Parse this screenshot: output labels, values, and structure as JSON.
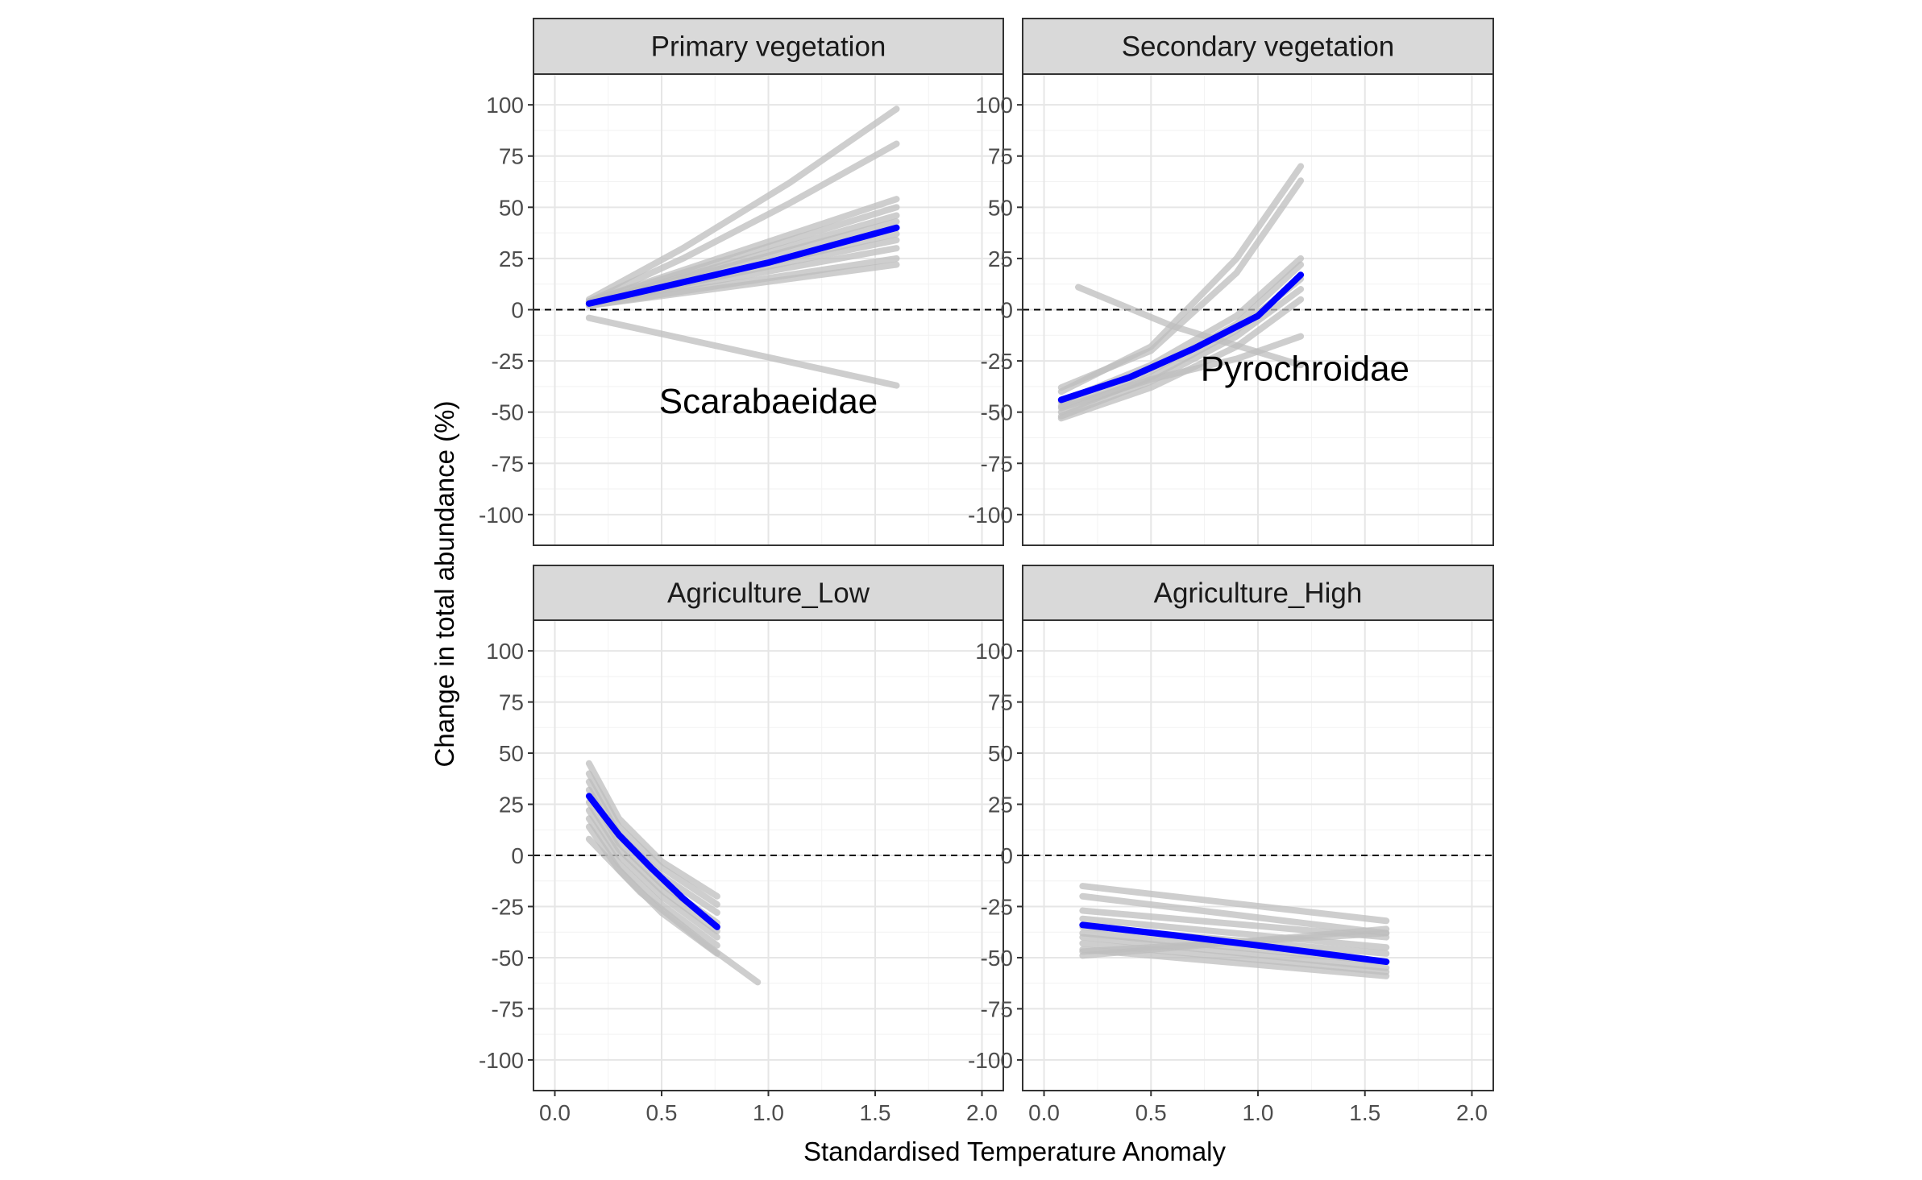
{
  "chart_data": {
    "type": "line",
    "facet_layout": "2x2",
    "xlabel": "Standardised Temperature Anomaly",
    "ylabel": "Change in total abundance (%)",
    "xlim": [
      -0.1,
      2.1
    ],
    "ylim": [
      -115,
      115
    ],
    "x_ticks": [
      0.0,
      0.5,
      1.0,
      1.5,
      2.0
    ],
    "x_tick_labels": [
      "0.0",
      "0.5",
      "1.0",
      "1.5",
      "2.0"
    ],
    "y_ticks": [
      100,
      75,
      50,
      25,
      0,
      -25,
      -50,
      -75,
      -100
    ],
    "y_tick_labels": [
      "100",
      "75",
      "50",
      "25",
      "0",
      "-25",
      "-50",
      "-75",
      "-100"
    ],
    "reference_line": {
      "y": 0,
      "style": "dashed"
    },
    "grid": true,
    "colors": {
      "mean_line": "#0000ff",
      "iteration_lines": "#bdbdbd",
      "strip_fill": "#d9d9d9",
      "reference_line": "#000000"
    },
    "panels": [
      {
        "title": "Primary vegetation",
        "annotation": "Scarabaeidae",
        "mean_series": {
          "x": [
            0.16,
            0.5,
            1.0,
            1.6
          ],
          "y": [
            3,
            11,
            23,
            40
          ]
        },
        "iteration_series": [
          {
            "x": [
              0.16,
              0.6,
              1.1,
              1.6
            ],
            "y": [
              5,
              30,
              62,
              98
            ]
          },
          {
            "x": [
              0.16,
              0.6,
              1.1,
              1.6
            ],
            "y": [
              4,
              25,
              52,
              81
            ]
          },
          {
            "x": [
              0.16,
              1.6
            ],
            "y": [
              4,
              54
            ]
          },
          {
            "x": [
              0.16,
              1.6
            ],
            "y": [
              4,
              50
            ]
          },
          {
            "x": [
              0.16,
              1.6
            ],
            "y": [
              3,
              46
            ]
          },
          {
            "x": [
              0.16,
              1.6
            ],
            "y": [
              3,
              43
            ]
          },
          {
            "x": [
              0.16,
              1.6
            ],
            "y": [
              3,
              37
            ]
          },
          {
            "x": [
              0.16,
              1.6
            ],
            "y": [
              3,
              34
            ]
          },
          {
            "x": [
              0.16,
              1.6
            ],
            "y": [
              3,
              30
            ]
          },
          {
            "x": [
              0.16,
              1.6
            ],
            "y": [
              2,
              25
            ]
          },
          {
            "x": [
              0.16,
              1.6
            ],
            "y": [
              2,
              22
            ]
          },
          {
            "x": [
              0.16,
              1.6
            ],
            "y": [
              -4,
              -37
            ]
          }
        ]
      },
      {
        "title": "Secondary vegetation",
        "annotation": "Pyrochroidae",
        "mean_series": {
          "x": [
            0.08,
            0.4,
            0.7,
            1.0,
            1.2
          ],
          "y": [
            -44,
            -33,
            -19,
            -3,
            17
          ]
        },
        "iteration_series": [
          {
            "x": [
              0.08,
              0.5,
              0.9,
              1.2
            ],
            "y": [
              -40,
              -18,
              25,
              70
            ]
          },
          {
            "x": [
              0.08,
              0.5,
              0.9,
              1.2
            ],
            "y": [
              -38,
              -20,
              18,
              63
            ]
          },
          {
            "x": [
              0.08,
              0.5,
              0.9,
              1.2
            ],
            "y": [
              -45,
              -27,
              -3,
              25
            ]
          },
          {
            "x": [
              0.08,
              0.5,
              0.9,
              1.2
            ],
            "y": [
              -47,
              -30,
              -7,
              22
            ]
          },
          {
            "x": [
              0.08,
              0.5,
              0.9,
              1.2
            ],
            "y": [
              -50,
              -33,
              -10,
              15
            ]
          },
          {
            "x": [
              0.08,
              0.5,
              0.9,
              1.2
            ],
            "y": [
              -52,
              -35,
              -13,
              10
            ]
          },
          {
            "x": [
              0.08,
              0.5,
              0.9,
              1.2
            ],
            "y": [
              -53,
              -38,
              -18,
              5
            ]
          },
          {
            "x": [
              0.08,
              0.5,
              0.9,
              1.2
            ],
            "y": [
              -48,
              -34,
              -24,
              -13
            ]
          },
          {
            "x": [
              0.16,
              0.6,
              1.2
            ],
            "y": [
              11,
              -8,
              -27
            ]
          }
        ]
      },
      {
        "title": "Agriculture_Low",
        "annotation": "",
        "mean_series": {
          "x": [
            0.16,
            0.3,
            0.45,
            0.6,
            0.76
          ],
          "y": [
            29,
            10,
            -6,
            -21,
            -35
          ]
        },
        "iteration_series": [
          {
            "x": [
              0.16,
              0.3,
              0.5,
              0.76
            ],
            "y": [
              45,
              18,
              -3,
              -20
            ]
          },
          {
            "x": [
              0.16,
              0.3,
              0.5,
              0.76
            ],
            "y": [
              40,
              14,
              -6,
              -24
            ]
          },
          {
            "x": [
              0.16,
              0.3,
              0.5,
              0.76
            ],
            "y": [
              36,
              10,
              -10,
              -28
            ]
          },
          {
            "x": [
              0.16,
              0.3,
              0.5,
              0.76
            ],
            "y": [
              32,
              6,
              -14,
              -33
            ]
          },
          {
            "x": [
              0.16,
              0.3,
              0.5,
              0.76
            ],
            "y": [
              26,
              3,
              -17,
              -37
            ]
          },
          {
            "x": [
              0.16,
              0.3,
              0.5,
              0.76
            ],
            "y": [
              22,
              0,
              -20,
              -40
            ]
          },
          {
            "x": [
              0.16,
              0.3,
              0.5,
              0.76
            ],
            "y": [
              18,
              -4,
              -24,
              -44
            ]
          },
          {
            "x": [
              0.16,
              0.3,
              0.5,
              0.76
            ],
            "y": [
              14,
              -7,
              -28,
              -48
            ]
          },
          {
            "x": [
              0.16,
              0.4,
              0.7,
              0.95
            ],
            "y": [
              8,
              -18,
              -43,
              -62
            ]
          }
        ]
      },
      {
        "title": "Agriculture_High",
        "annotation": "",
        "mean_series": {
          "x": [
            0.18,
            0.6,
            1.0,
            1.6
          ],
          "y": [
            -34,
            -39,
            -44,
            -52
          ]
        },
        "iteration_series": [
          {
            "x": [
              0.18,
              1.6
            ],
            "y": [
              -15,
              -32
            ]
          },
          {
            "x": [
              0.18,
              1.6
            ],
            "y": [
              -20,
              -38
            ]
          },
          {
            "x": [
              0.18,
              1.6
            ],
            "y": [
              -27,
              -40
            ]
          },
          {
            "x": [
              0.18,
              1.6
            ],
            "y": [
              -31,
              -45
            ]
          },
          {
            "x": [
              0.18,
              1.6
            ],
            "y": [
              -35,
              -48
            ]
          },
          {
            "x": [
              0.18,
              1.6
            ],
            "y": [
              -38,
              -52
            ]
          },
          {
            "x": [
              0.18,
              1.6
            ],
            "y": [
              -40,
              -55
            ]
          },
          {
            "x": [
              0.18,
              1.6
            ],
            "y": [
              -43,
              -57
            ]
          },
          {
            "x": [
              0.18,
              1.6
            ],
            "y": [
              -46,
              -59
            ]
          },
          {
            "x": [
              0.18,
              1.6
            ],
            "y": [
              -49,
              -36
            ]
          },
          {
            "x": [
              0.18,
              1.6
            ],
            "y": [
              -47,
              -38
            ]
          }
        ]
      }
    ]
  }
}
